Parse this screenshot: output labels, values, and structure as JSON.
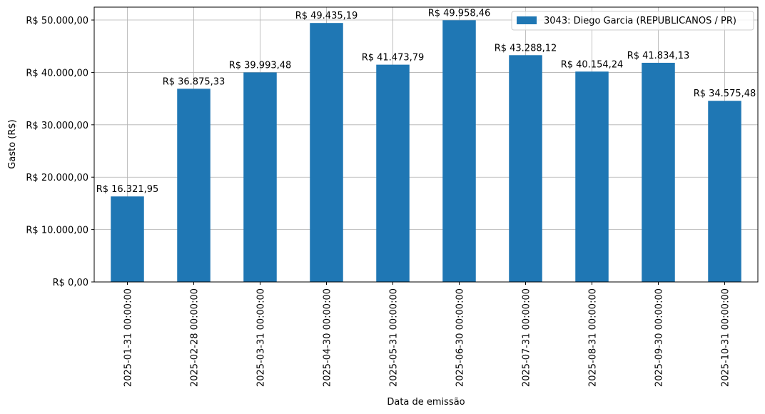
{
  "chart_data": {
    "type": "bar",
    "categories": [
      "2025-01-31 00:00:00",
      "2025-02-28 00:00:00",
      "2025-03-31 00:00:00",
      "2025-04-30 00:00:00",
      "2025-05-31 00:00:00",
      "2025-06-30 00:00:00",
      "2025-07-31 00:00:00",
      "2025-08-31 00:00:00",
      "2025-09-30 00:00:00",
      "2025-10-31 00:00:00"
    ],
    "series": [
      {
        "name": "3043: Diego Garcia (REPUBLICANOS / PR)",
        "values": [
          16321.95,
          36875.33,
          39993.48,
          49435.19,
          41473.79,
          49958.46,
          43288.12,
          40154.24,
          41834.13,
          34575.48
        ],
        "labels": [
          "R$ 16.321,95",
          "R$ 36.875,33",
          "R$ 39.993,48",
          "R$ 49.435,19",
          "R$ 41.473,79",
          "R$ 49.958,46",
          "R$ 43.288,12",
          "R$ 40.154,24",
          "R$ 41.834,13",
          "R$ 34.575,48"
        ],
        "color": "#1f77b4"
      }
    ],
    "title": "",
    "xlabel": "Data de emissão",
    "ylabel": "Gasto (R$)",
    "ylim": [
      0,
      52457.38
    ],
    "yticks": [
      0,
      10000,
      20000,
      30000,
      40000,
      50000
    ],
    "ytick_labels": [
      "R$ 0,00",
      "R$ 10.000,00",
      "R$ 20.000,00",
      "R$ 30.000,00",
      "R$ 40.000,00",
      "R$ 50.000,00"
    ],
    "grid": true,
    "legend_position": "top-right"
  }
}
